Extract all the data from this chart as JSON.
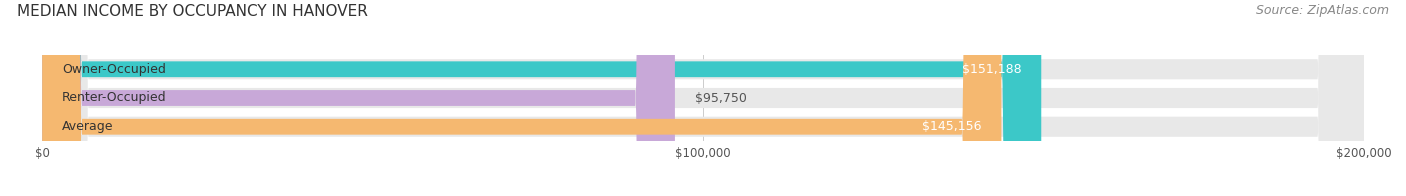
{
  "title": "MEDIAN INCOME BY OCCUPANCY IN HANOVER",
  "source": "Source: ZipAtlas.com",
  "categories": [
    "Owner-Occupied",
    "Renter-Occupied",
    "Average"
  ],
  "values": [
    151188,
    95750,
    145156
  ],
  "bar_colors": [
    "#3cc8c8",
    "#c8a8d8",
    "#f5b870"
  ],
  "bar_bg_color": "#e8e8e8",
  "label_colors": [
    "#ffffff",
    "#555555",
    "#ffffff"
  ],
  "value_labels": [
    "$151,188",
    "$95,750",
    "$145,156"
  ],
  "xlim": [
    0,
    200000
  ],
  "xticks": [
    0,
    100000,
    200000
  ],
  "xtick_labels": [
    "$0",
    "$100,000",
    "$200,000"
  ],
  "title_fontsize": 11,
  "source_fontsize": 9,
  "bar_label_fontsize": 9,
  "value_label_fontsize": 9,
  "figsize": [
    14.06,
    1.96
  ],
  "dpi": 100
}
